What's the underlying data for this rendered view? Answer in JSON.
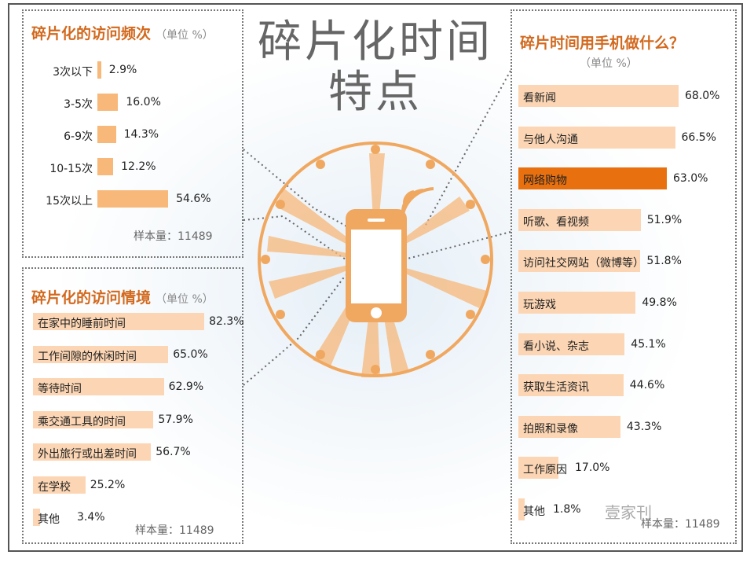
{
  "title_line1": "碎片化时间",
  "title_line2": "特点",
  "colors": {
    "accent": "#f7b87a",
    "light": "#fcd6b4",
    "highlight": "#e8700f",
    "title": "#d2691e"
  },
  "freq": {
    "title": "碎片化的访问频次",
    "unit": "（单位 %）",
    "sample": "样本量：11489"
  },
  "context": {
    "title": "碎片化的访问情境",
    "unit": "（单位 %）",
    "sample": "样本量：11489"
  },
  "activities": {
    "title": "碎片时间用手机做什么？",
    "unit": "（单位 %）",
    "sample": "样本量：11489"
  },
  "watermark": "壹家刊",
  "chart_data": [
    {
      "type": "bar",
      "orientation": "horizontal",
      "title": "碎片化的访问频次",
      "categories": [
        "3次以下",
        "3-5次",
        "6-9次",
        "10-15次",
        "15次以上"
      ],
      "values": [
        2.9,
        16.0,
        14.3,
        12.2,
        54.6
      ],
      "labels": [
        "2.9%",
        "16.0%",
        "14.3%",
        "12.2%",
        "54.6%"
      ]
    },
    {
      "type": "bar",
      "orientation": "horizontal",
      "title": "碎片化的访问情境",
      "categories": [
        "在家中的睡前时间",
        "工作间隙的休闲时间",
        "等待时间",
        "乘交通工具的时间",
        "外出旅行或出差时间",
        "在学校",
        "其他"
      ],
      "values": [
        82.3,
        65.0,
        62.9,
        57.9,
        56.7,
        25.2,
        3.4
      ],
      "labels": [
        "82.3%",
        "65.0%",
        "62.9%",
        "57.9%",
        "56.7%",
        "25.2%",
        "3.4%"
      ]
    },
    {
      "type": "bar",
      "orientation": "horizontal",
      "title": "碎片时间用手机做什么？",
      "categories": [
        "看新闻",
        "与他人沟通",
        "网络购物",
        "听歌、看视频",
        "访问社交网站（微博等）",
        "玩游戏",
        "看小说、杂志",
        "获取生活资讯",
        "拍照和录像",
        "工作原因",
        "其他"
      ],
      "values": [
        68.0,
        66.5,
        63.0,
        51.9,
        51.8,
        49.8,
        45.1,
        44.6,
        43.3,
        17.0,
        1.8
      ],
      "labels": [
        "68.0%",
        "66.5%",
        "63.0%",
        "51.9%",
        "51.8%",
        "49.8%",
        "45.1%",
        "44.6%",
        "43.3%",
        "17.0%",
        "1.8%"
      ],
      "highlight": "网络购物"
    }
  ]
}
